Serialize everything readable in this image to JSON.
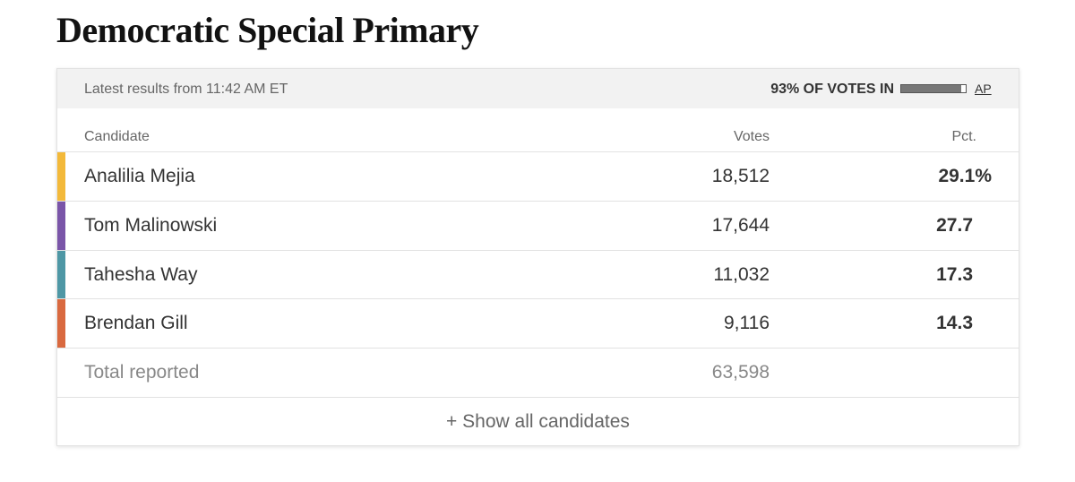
{
  "title": "Democratic Special Primary",
  "status": {
    "updated": "Latest results from 11:42 AM ET",
    "reporting_label": "93% OF VOTES IN",
    "reporting_value": 93,
    "source": "AP"
  },
  "table": {
    "columns": [
      "Candidate",
      "Votes",
      "Pct."
    ],
    "rows": [
      {
        "name": "Analilia Mejia",
        "votes": "18,512",
        "pct": "29.1%",
        "color": "#f3b93a"
      },
      {
        "name": "Tom Malinowski",
        "votes": "17,644",
        "pct": "27.7",
        "color": "#7a55a8"
      },
      {
        "name": "Tahesha Way",
        "votes": "11,032",
        "pct": "17.3",
        "color": "#4e97a5"
      },
      {
        "name": "Brendan Gill",
        "votes": "9,116",
        "pct": "14.3",
        "color": "#d9693f"
      }
    ],
    "total": {
      "label": "Total reported",
      "votes": "63,598"
    },
    "more": "+ Show all candidates"
  }
}
